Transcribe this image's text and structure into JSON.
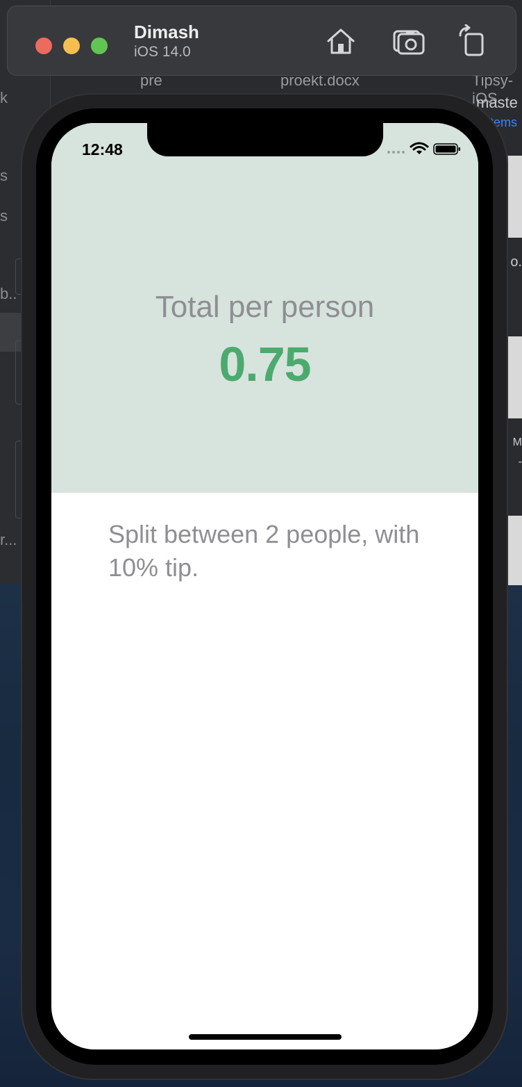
{
  "simulator": {
    "device_name": "Dimash",
    "os_version": "iOS 14.0",
    "toolbar_icons": [
      "home-icon",
      "screenshot-icon",
      "rotate-icon"
    ]
  },
  "background": {
    "finder_labels": [
      "pre",
      "proekt.docx",
      "Tipsy-iOS",
      "maste",
      "items"
    ],
    "side_fragments": [
      "k",
      "s",
      "s",
      "b..",
      "r..."
    ],
    "right_fragments": [
      "o.",
      "M",
      "-"
    ]
  },
  "status_bar": {
    "time": "12:48"
  },
  "result": {
    "total_label": "Total per person",
    "total_value": "0.75",
    "settings_text": "Split between 2 people, with 10% tip."
  },
  "colors": {
    "top_panel": "#d7e3dd",
    "accent_green": "#4caa6f",
    "label_gray": "#8e8e93"
  }
}
